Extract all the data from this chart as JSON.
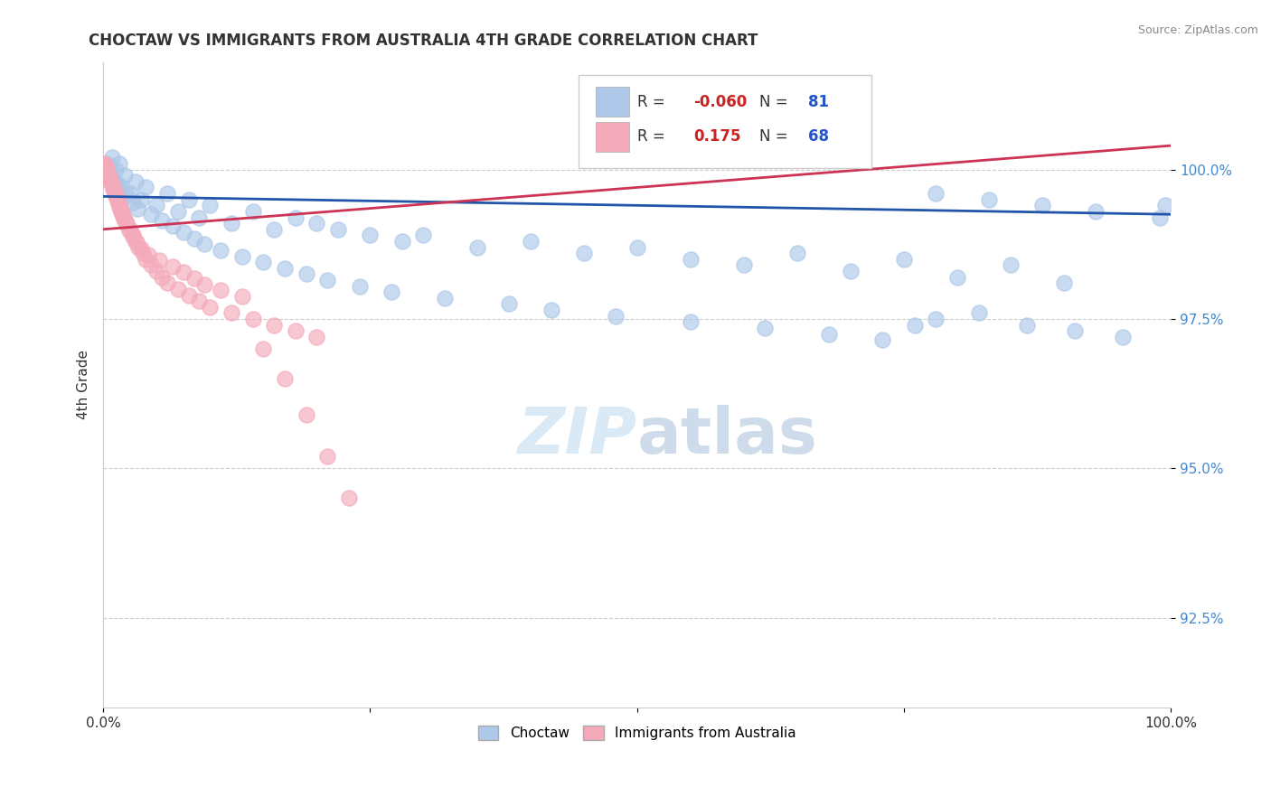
{
  "title": "CHOCTAW VS IMMIGRANTS FROM AUSTRALIA 4TH GRADE CORRELATION CHART",
  "source": "Source: ZipAtlas.com",
  "ylabel": "4th Grade",
  "xlim": [
    0.0,
    100.0
  ],
  "ylim": [
    91.0,
    101.8
  ],
  "yticks": [
    92.5,
    95.0,
    97.5,
    100.0
  ],
  "ytick_labels": [
    "92.5%",
    "95.0%",
    "97.5%",
    "100.0%"
  ],
  "blue_color": "#adc8e8",
  "pink_color": "#f4aabb",
  "blue_line_color": "#2255aa",
  "pink_line_color": "#cc3355",
  "legend_blue_label": "Choctaw",
  "legend_pink_label": "Immigrants from Australia",
  "background_color": "#ffffff",
  "grid_color": "#cccccc",
  "blue_R": -0.06,
  "blue_N": 81,
  "pink_R": 0.175,
  "pink_N": 68,
  "blue_line_y0": 99.55,
  "blue_line_y1": 99.25,
  "pink_line_y0": 99.0,
  "pink_line_y1": 100.4,
  "blue_x": [
    0.3,
    0.5,
    0.8,
    1.0,
    1.2,
    1.5,
    1.8,
    2.0,
    2.5,
    3.0,
    3.5,
    4.0,
    5.0,
    6.0,
    7.0,
    8.0,
    9.0,
    10.0,
    12.0,
    14.0,
    16.0,
    18.0,
    20.0,
    22.0,
    25.0,
    28.0,
    30.0,
    35.0,
    40.0,
    45.0,
    50.0,
    55.0,
    60.0,
    65.0,
    70.0,
    75.0,
    80.0,
    85.0,
    90.0,
    99.5,
    0.4,
    0.6,
    0.9,
    1.3,
    1.7,
    2.2,
    2.8,
    3.2,
    4.5,
    5.5,
    6.5,
    7.5,
    8.5,
    9.5,
    11.0,
    13.0,
    15.0,
    17.0,
    19.0,
    21.0,
    24.0,
    27.0,
    32.0,
    38.0,
    42.0,
    48.0,
    55.0,
    62.0,
    68.0,
    73.0,
    78.0,
    83.0,
    88.0,
    93.0,
    78.0,
    82.0,
    86.5,
    91.0,
    95.5,
    99.0,
    76.0
  ],
  "blue_y": [
    100.1,
    99.9,
    100.2,
    99.8,
    100.0,
    100.1,
    99.7,
    99.9,
    99.6,
    99.8,
    99.5,
    99.7,
    99.4,
    99.6,
    99.3,
    99.5,
    99.2,
    99.4,
    99.1,
    99.3,
    99.0,
    99.2,
    99.1,
    99.0,
    98.9,
    98.8,
    98.9,
    98.7,
    98.8,
    98.6,
    98.7,
    98.5,
    98.4,
    98.6,
    98.3,
    98.5,
    98.2,
    98.4,
    98.1,
    99.4,
    100.0,
    100.05,
    99.85,
    99.75,
    99.65,
    99.55,
    99.45,
    99.35,
    99.25,
    99.15,
    99.05,
    98.95,
    98.85,
    98.75,
    98.65,
    98.55,
    98.45,
    98.35,
    98.25,
    98.15,
    98.05,
    97.95,
    97.85,
    97.75,
    97.65,
    97.55,
    97.45,
    97.35,
    97.25,
    97.15,
    99.6,
    99.5,
    99.4,
    99.3,
    97.5,
    97.6,
    97.4,
    97.3,
    97.2,
    99.2,
    97.4
  ],
  "pink_x": [
    0.1,
    0.2,
    0.3,
    0.4,
    0.5,
    0.6,
    0.7,
    0.8,
    0.9,
    1.0,
    1.1,
    1.2,
    1.3,
    1.4,
    1.5,
    1.6,
    1.7,
    1.8,
    1.9,
    2.0,
    2.2,
    2.5,
    2.8,
    3.0,
    3.3,
    3.7,
    4.0,
    4.5,
    5.0,
    5.5,
    6.0,
    7.0,
    8.0,
    9.0,
    10.0,
    12.0,
    14.0,
    16.0,
    18.0,
    20.0,
    0.15,
    0.35,
    0.55,
    0.75,
    0.95,
    1.15,
    1.35,
    1.55,
    1.75,
    1.95,
    2.15,
    2.45,
    2.75,
    3.15,
    3.55,
    4.25,
    5.25,
    6.5,
    7.5,
    8.5,
    9.5,
    11.0,
    13.0,
    15.0,
    17.0,
    19.0,
    21.0,
    23.0
  ],
  "pink_y": [
    100.1,
    100.05,
    100.0,
    99.95,
    99.9,
    99.85,
    99.8,
    99.75,
    99.7,
    99.65,
    99.6,
    99.55,
    99.5,
    99.45,
    99.4,
    99.35,
    99.3,
    99.25,
    99.2,
    99.15,
    99.1,
    99.0,
    98.9,
    98.8,
    98.7,
    98.6,
    98.5,
    98.4,
    98.3,
    98.2,
    98.1,
    98.0,
    97.9,
    97.8,
    97.7,
    97.6,
    97.5,
    97.4,
    97.3,
    97.2,
    100.08,
    99.98,
    99.88,
    99.78,
    99.68,
    99.58,
    99.48,
    99.38,
    99.28,
    99.18,
    99.08,
    98.98,
    98.88,
    98.78,
    98.68,
    98.58,
    98.48,
    98.38,
    98.28,
    98.18,
    98.08,
    97.98,
    97.88,
    97.0,
    96.5,
    95.9,
    95.2,
    94.5
  ]
}
